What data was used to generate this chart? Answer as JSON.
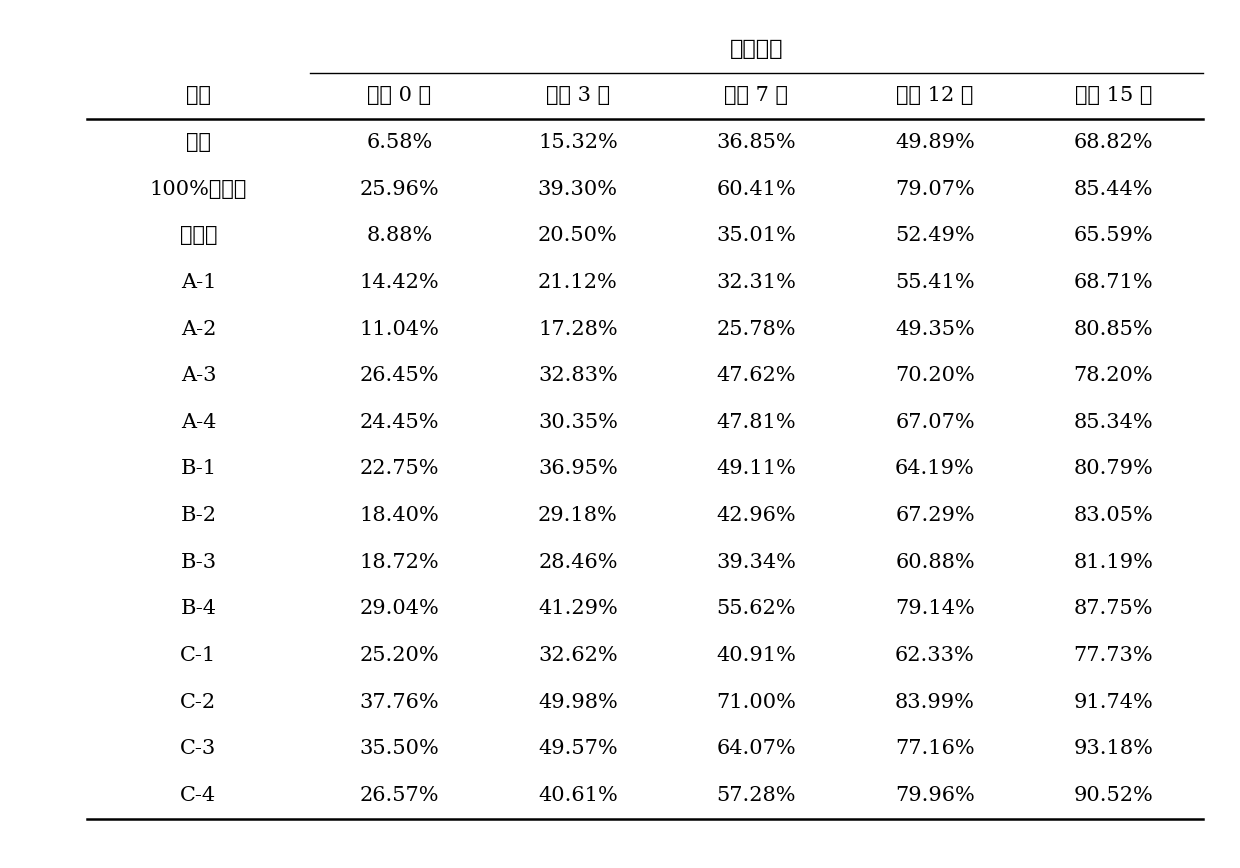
{
  "title": "药后天数",
  "col_header_row1": "处理",
  "col_headers": [
    "药后 0 天",
    "药后 3 天",
    "药后 7 天",
    "药后 12 天",
    "药后 15 天"
  ],
  "rows": [
    {
      "label": "清水",
      "values": [
        "6.58%",
        "15.32%",
        "36.85%",
        "49.89%",
        "68.82%"
      ]
    },
    {
      "label": "100%噻苯隆",
      "values": [
        "25.96%",
        "39.30%",
        "60.41%",
        "79.07%",
        "85.44%"
      ]
    },
    {
      "label": "脱吐隆",
      "values": [
        "8.88%",
        "20.50%",
        "35.01%",
        "52.49%",
        "65.59%"
      ]
    },
    {
      "label": "A-1",
      "values": [
        "14.42%",
        "21.12%",
        "32.31%",
        "55.41%",
        "68.71%"
      ]
    },
    {
      "label": "A-2",
      "values": [
        "11.04%",
        "17.28%",
        "25.78%",
        "49.35%",
        "80.85%"
      ]
    },
    {
      "label": "A-3",
      "values": [
        "26.45%",
        "32.83%",
        "47.62%",
        "70.20%",
        "78.20%"
      ]
    },
    {
      "label": "A-4",
      "values": [
        "24.45%",
        "30.35%",
        "47.81%",
        "67.07%",
        "85.34%"
      ]
    },
    {
      "label": "B-1",
      "values": [
        "22.75%",
        "36.95%",
        "49.11%",
        "64.19%",
        "80.79%"
      ]
    },
    {
      "label": "B-2",
      "values": [
        "18.40%",
        "29.18%",
        "42.96%",
        "67.29%",
        "83.05%"
      ]
    },
    {
      "label": "B-3",
      "values": [
        "18.72%",
        "28.46%",
        "39.34%",
        "60.88%",
        "81.19%"
      ]
    },
    {
      "label": "B-4",
      "values": [
        "29.04%",
        "41.29%",
        "55.62%",
        "79.14%",
        "87.75%"
      ]
    },
    {
      "label": "C-1",
      "values": [
        "25.20%",
        "32.62%",
        "40.91%",
        "62.33%",
        "77.73%"
      ]
    },
    {
      "label": "C-2",
      "values": [
        "37.76%",
        "49.98%",
        "71.00%",
        "83.99%",
        "91.74%"
      ]
    },
    {
      "label": "C-3",
      "values": [
        "35.50%",
        "49.57%",
        "64.07%",
        "77.16%",
        "93.18%"
      ]
    },
    {
      "label": "C-4",
      "values": [
        "26.57%",
        "40.61%",
        "57.28%",
        "79.96%",
        "90.52%"
      ]
    }
  ],
  "bg_color": "#ffffff",
  "text_color": "#000000",
  "font_size": 15,
  "header_font_size": 15,
  "title_font_size": 16
}
